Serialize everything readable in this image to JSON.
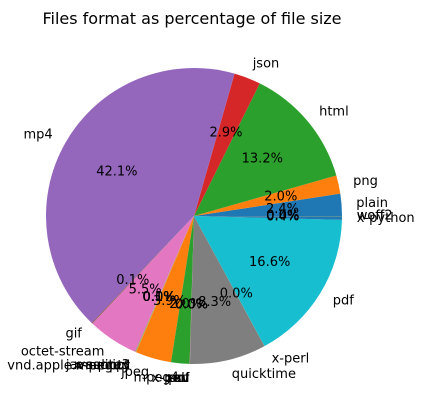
{
  "chart_data": {
    "type": "pie",
    "title": "Files format as percentage of file size",
    "start_angle_deg": 0,
    "direction": "counterclockwise",
    "slices": [
      {
        "label": "plain",
        "value": 2.4,
        "pct": "2.4%",
        "color": "#1f77b4"
      },
      {
        "label": "png",
        "value": 2.0,
        "pct": "2.0%",
        "color": "#ff7f0e"
      },
      {
        "label": "html",
        "value": 13.2,
        "pct": "13.2%",
        "color": "#2ca02c"
      },
      {
        "label": "json",
        "value": 2.9,
        "pct": "2.9%",
        "color": "#d62728"
      },
      {
        "label": "mp4",
        "value": 42.1,
        "pct": "42.1%",
        "color": "#9467bd"
      },
      {
        "label": "gif",
        "value": 0.1,
        "pct": "0.1%",
        "color": "#8c564b"
      },
      {
        "label": "octet-stream",
        "value": 5.5,
        "pct": "5.5%",
        "color": "#e377c2"
      },
      {
        "label": "javascript",
        "value": 0.05,
        "pct": "0.1%",
        "color": "#7f7f7f"
      },
      {
        "label": "x-sqlite3",
        "value": 0.05,
        "pct": "0.1%",
        "color": "#bcbd22"
      },
      {
        "label": "x-empty",
        "value": 0.01,
        "pct": "0.0%",
        "color": "#17becf"
      },
      {
        "label": "vnd.apple.mpegurl",
        "value": 0.01,
        "pct": "0.0%",
        "color": "#1f77b4"
      },
      {
        "label": "jpeg",
        "value": 3.9,
        "pct": "3.9%",
        "color": "#ff7f0e"
      },
      {
        "label": "mpeg4",
        "value": 2.0,
        "pct": "2.0%",
        "color": "#2ca02c"
      },
      {
        "label": "csv",
        "value": 0.01,
        "pct": "0.0%",
        "color": "#d62728"
      },
      {
        "label": "pdf",
        "value": 0.01,
        "pct": "0.0%",
        "color": "#9467bd"
      },
      {
        "label": "x-perl",
        "value": 0.01,
        "pct": "0.0%",
        "color": "#8c564b"
      },
      {
        "label": "xml",
        "value": 0.01,
        "pct": "0.0%",
        "color": "#e377c2"
      },
      {
        "label": "quicktime",
        "value": 8.3,
        "pct": "8.3%",
        "color": "#7f7f7f"
      },
      {
        "label": "x-perl",
        "value": 0.01,
        "pct": "0.0%",
        "color": "#bcbd22"
      },
      {
        "label": "pdf",
        "value": 16.6,
        "pct": "16.6%",
        "color": "#17becf"
      },
      {
        "label": "x-python",
        "value": 0.4,
        "pct": "0.4%",
        "color": "#1f77b4"
      },
      {
        "label": "woff2",
        "value": 0.01,
        "pct": "0.0%",
        "color": "#ff7f0e"
      },
      {
        "label": "woff",
        "value": 0.01,
        "pct": "0.0%",
        "color": "#2ca02c"
      }
    ]
  }
}
